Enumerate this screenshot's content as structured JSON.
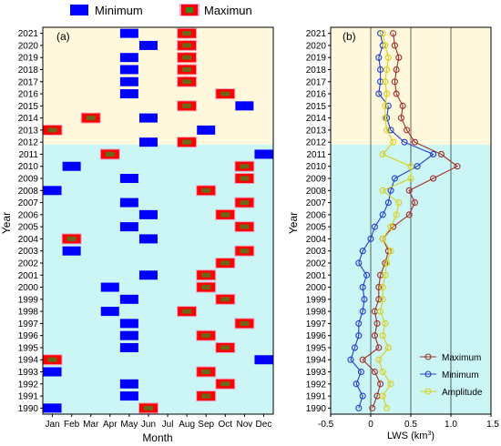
{
  "legend_top": {
    "minimum_label": "Minimum",
    "maximum_label": "Maximun"
  },
  "chart_data": [
    {
      "type": "scatter",
      "panel_label": "(a)",
      "xlabel": "Month",
      "ylabel": "Year",
      "x_categories": [
        "Jan",
        "Feb",
        "Mar",
        "Apr",
        "May",
        "Jun",
        "Jul",
        "Aug",
        "Sep",
        "Oct",
        "Nov",
        "Dec"
      ],
      "years": [
        1990,
        1991,
        1992,
        1993,
        1994,
        1995,
        1996,
        1997,
        1998,
        1999,
        2000,
        2001,
        2002,
        2003,
        2004,
        2005,
        2006,
        2007,
        2008,
        2009,
        2010,
        2011,
        2012,
        2013,
        2014,
        2015,
        2016,
        2017,
        2018,
        2019,
        2020,
        2021
      ],
      "min_month": [
        "Jan",
        "May",
        "May",
        "Jan",
        "Dec",
        "May",
        "May",
        "May",
        "Apr",
        "May",
        "Apr",
        "Jun",
        "",
        "Feb",
        "Jun",
        "May",
        "Jun",
        "May",
        "Jan",
        "May",
        "Feb",
        "Dec",
        "Jun",
        "Sep",
        "Jun",
        "Nov",
        "May",
        "May",
        "May",
        "May",
        "Jun",
        "May"
      ],
      "max_month": [
        "Jun",
        "Sep",
        "Oct",
        "Sep",
        "Jan",
        "Oct",
        "Sep",
        "Nov",
        "Aug",
        "Oct",
        "Sep",
        "Sep",
        "Oct",
        "Nov",
        "Feb",
        "Nov",
        "Oct",
        "Nov",
        "Sep",
        "Nov",
        "Nov",
        "Apr",
        "Aug",
        "Jan",
        "Mar",
        "Aug",
        "Oct",
        "Aug",
        "Aug",
        "Aug",
        "Aug",
        "Aug"
      ],
      "colors": {
        "minimum": "#0000ff",
        "maximum": "#ff0000",
        "upper_bg": "#fff8dc",
        "lower_bg": "#ccf5f5"
      },
      "background_split_year": 2012
    },
    {
      "type": "line",
      "panel_label": "(b)",
      "xlabel": "LWS (km",
      "xlabel_sup": "3",
      "xlabel_close": ")",
      "ylabel": "Year",
      "xlim": [
        -0.5,
        1.5
      ],
      "xticks": [
        "-0.5",
        "0",
        "0.5",
        "1.0",
        "1.5"
      ],
      "xtick_values": [
        -0.5,
        0,
        0.5,
        1.0,
        1.5
      ],
      "years": [
        1990,
        1991,
        1992,
        1993,
        1994,
        1995,
        1996,
        1997,
        1998,
        1999,
        2000,
        2001,
        2002,
        2003,
        2004,
        2005,
        2006,
        2007,
        2008,
        2009,
        2010,
        2011,
        2012,
        2013,
        2014,
        2015,
        2016,
        2017,
        2018,
        2019,
        2020,
        2021
      ],
      "series": [
        {
          "name": "Maximum",
          "color": "#a0302a",
          "values": [
            0.02,
            0.08,
            0.12,
            0.05,
            -0.1,
            0.1,
            0.05,
            0.08,
            0.05,
            0.1,
            0.1,
            0.12,
            0.18,
            0.22,
            0.15,
            0.28,
            0.48,
            0.55,
            0.48,
            0.78,
            1.08,
            0.88,
            0.55,
            0.45,
            0.38,
            0.4,
            0.32,
            0.3,
            0.32,
            0.35,
            0.3,
            0.28
          ]
        },
        {
          "name": "Minimum",
          "color": "#1f3fd0",
          "values": [
            -0.15,
            -0.1,
            -0.18,
            -0.12,
            -0.25,
            -0.2,
            -0.15,
            -0.15,
            -0.1,
            -0.08,
            -0.1,
            -0.05,
            -0.15,
            -0.1,
            0.0,
            0.05,
            0.15,
            0.22,
            0.25,
            0.3,
            0.58,
            0.78,
            0.42,
            0.25,
            0.2,
            0.22,
            0.1,
            0.12,
            0.12,
            0.1,
            0.15,
            0.12
          ]
        },
        {
          "name": "Amplitude",
          "color": "#d8d020",
          "values": [
            0.2,
            0.15,
            0.25,
            0.15,
            0.1,
            0.22,
            0.15,
            0.18,
            0.12,
            0.15,
            0.15,
            0.18,
            0.2,
            0.25,
            0.15,
            0.25,
            0.32,
            0.35,
            0.15,
            0.5,
            0.5,
            0.15,
            0.28,
            0.2,
            0.18,
            0.18,
            0.2,
            0.18,
            0.2,
            0.22,
            0.18,
            0.15
          ]
        }
      ],
      "vertical_lines": [
        0,
        0.5,
        1.0
      ],
      "legend": "bottom-right",
      "background_split_year": 2012
    }
  ]
}
